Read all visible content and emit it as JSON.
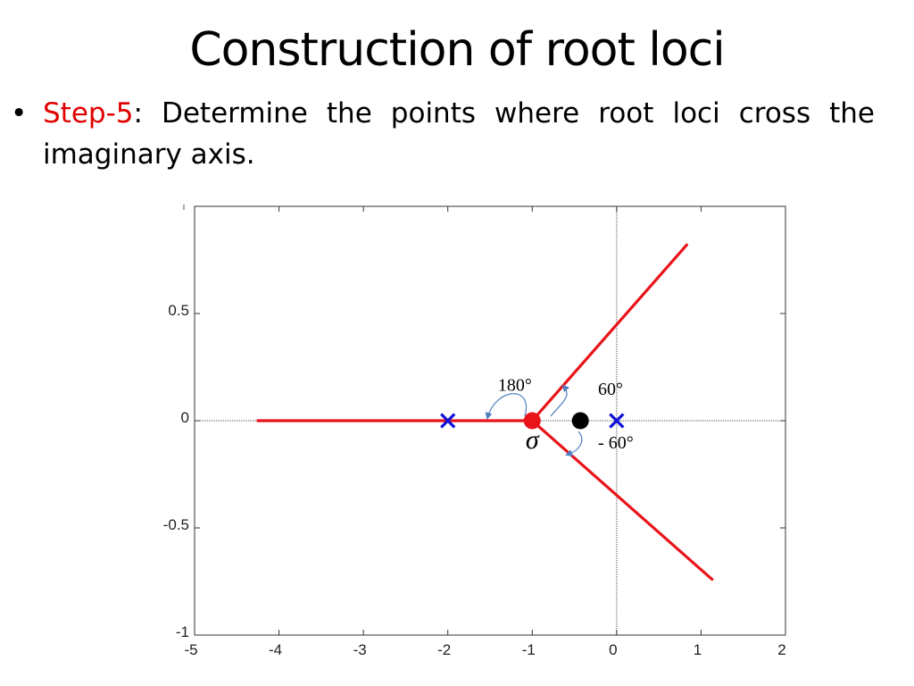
{
  "slide": {
    "title": "Construction of root loci",
    "bullet_marker": "•",
    "step_label": "Step-5",
    "step_text": ": Determine the points where root loci cross the imaginary axis."
  },
  "colors": {
    "locus": "#e8141a",
    "pole": "#1010d8",
    "centroid": "#e8141a",
    "zero_point": "#000000",
    "annotation_arrow": "#4f7fc0",
    "step_label": "#e00000"
  },
  "chart_data": {
    "type": "scatter",
    "title": "",
    "xlabel": "",
    "ylabel": "",
    "xlim": [
      -5,
      2
    ],
    "ylim": [
      -1,
      1
    ],
    "x_ticks": [
      -5,
      -4,
      -3,
      -2,
      -1,
      0,
      1,
      2
    ],
    "x_tick_labels": [
      "-5",
      "-4",
      "-3",
      "-2",
      "-1",
      "0",
      "1",
      "2"
    ],
    "y_ticks": [
      -1,
      -0.5,
      0,
      0.5
    ],
    "y_tick_labels": [
      "-1",
      "-0.5",
      "0",
      "0.5"
    ],
    "grid": false,
    "axis_lines": true,
    "loci": [
      {
        "name": "",
        "points": [
          [
            -4.25,
            0
          ],
          [
            -1,
            0
          ]
        ]
      },
      {
        "name": "",
        "points": [
          [
            -1,
            0
          ],
          [
            0.83,
            0.82
          ]
        ]
      },
      {
        "name": "",
        "points": [
          [
            -1,
            0
          ],
          [
            1.13,
            -0.74
          ]
        ]
      }
    ],
    "poles": [
      [
        -2,
        0
      ],
      [
        0,
        0
      ]
    ],
    "centroid": [
      -1,
      0
    ],
    "marked_point": [
      -0.43,
      0
    ],
    "annotations": [
      {
        "text": "180°",
        "at": [
          -1.3,
          0.14
        ]
      },
      {
        "text": "60°",
        "at": [
          -0.22,
          0.12
        ]
      },
      {
        "text": "- 60°",
        "at": [
          -0.22,
          -0.13
        ]
      },
      {
        "text": "σ",
        "at": [
          -1,
          -0.13
        ]
      }
    ]
  }
}
